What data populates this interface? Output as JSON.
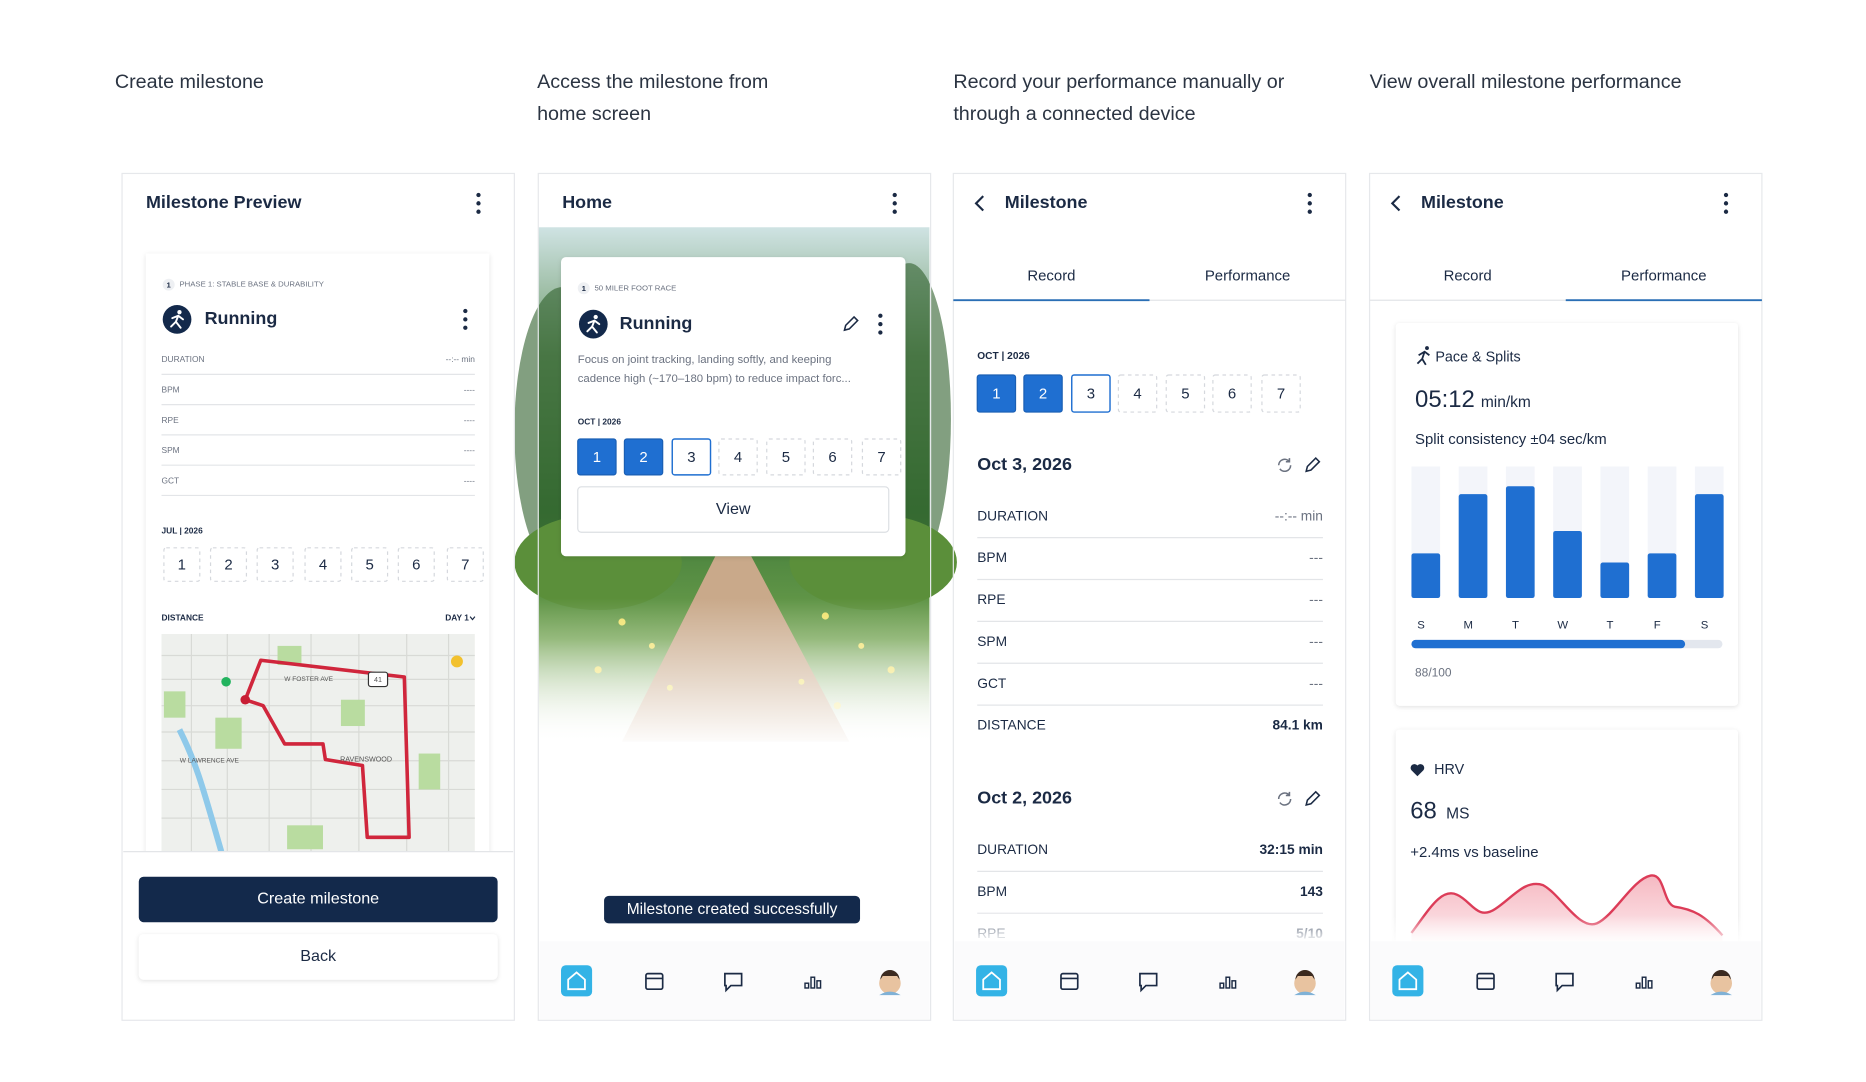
{
  "captions": [
    [
      "Create milestone"
    ],
    [
      "Access the milestone from",
      "home screen"
    ],
    [
      "Record your performance manually or",
      "through a connected device"
    ],
    [
      "View overall milestone performance"
    ]
  ],
  "preview": {
    "title": "Milestone Preview",
    "phase_number": "1",
    "phase": "PHASE 1: STABLE BASE & DURABILITY",
    "activity": "Running",
    "metrics": [
      {
        "label": "DURATION",
        "value": "--:-- min"
      },
      {
        "label": "BPM",
        "value": "----"
      },
      {
        "label": "RPE",
        "value": "----"
      },
      {
        "label": "SPM",
        "value": "----"
      },
      {
        "label": "GCT",
        "value": "----"
      }
    ],
    "month": "JUL | 2026",
    "days": [
      1,
      2,
      3,
      4,
      5,
      6,
      7
    ],
    "distance_label": "DISTANCE",
    "day_selector": "DAY 1",
    "map_labels": [
      "W FOSTER AVE",
      "41",
      "W LAWRENCE AVE",
      "RAVENSWOOD"
    ],
    "primary_button": "Create milestone",
    "secondary_button": "Back"
  },
  "home": {
    "title": "Home",
    "race_number": "1",
    "race": "50 MILER FOOT RACE",
    "activity": "Running",
    "description": [
      "Focus on joint tracking, landing softly, and keeping",
      "cadence high (~170–180 bpm) to reduce impact forc..."
    ],
    "month": "OCT | 2026",
    "days": [
      1,
      2,
      3,
      4,
      5,
      6,
      7
    ],
    "day_status": [
      "done",
      "done",
      "current",
      "open",
      "open",
      "open",
      "open"
    ],
    "button": "View",
    "toast": "Milestone created successfully"
  },
  "record": {
    "title": "Milestone",
    "tabs": [
      "Record",
      "Performance"
    ],
    "active_tab": 0,
    "month": "OCT | 2026",
    "days": [
      1,
      2,
      3,
      4,
      5,
      6,
      7
    ],
    "day_status": [
      "done",
      "done",
      "current",
      "open",
      "open",
      "open",
      "open"
    ],
    "entries": [
      {
        "date": "Oct 3, 2026",
        "metrics": [
          {
            "label": "DURATION",
            "value": "--:-- min"
          },
          {
            "label": "BPM",
            "value": "---"
          },
          {
            "label": "RPE",
            "value": "---"
          },
          {
            "label": "SPM",
            "value": "---"
          },
          {
            "label": "GCT",
            "value": "---"
          },
          {
            "label": "DISTANCE",
            "value": "84.1 km"
          }
        ]
      },
      {
        "date": "Oct 2, 2026",
        "metrics": [
          {
            "label": "DURATION",
            "value": "32:15 min"
          },
          {
            "label": "BPM",
            "value": "143"
          },
          {
            "label": "RPE",
            "value": "5/10"
          }
        ]
      }
    ]
  },
  "performance": {
    "title": "Milestone",
    "tabs": [
      "Record",
      "Performance"
    ],
    "active_tab": 1,
    "pace_title": "Pace & Splits",
    "pace_value": "05:12",
    "pace_unit": "min/km",
    "consistency": "Split consistency ±04 sec/km",
    "chart": {
      "type": "bar",
      "categories": [
        "S",
        "M",
        "T",
        "W",
        "T",
        "F",
        "S"
      ],
      "values": [
        34,
        79,
        85,
        51,
        27,
        34,
        79
      ],
      "ylim": [
        0,
        100
      ],
      "color": "#1f6fd1"
    },
    "score": {
      "value": 88,
      "max": 100,
      "label": "88/100"
    },
    "hrv_title": "HRV",
    "hrv_value": "68",
    "hrv_unit": "MS",
    "hrv_note": "+2.4ms vs baseline"
  }
}
